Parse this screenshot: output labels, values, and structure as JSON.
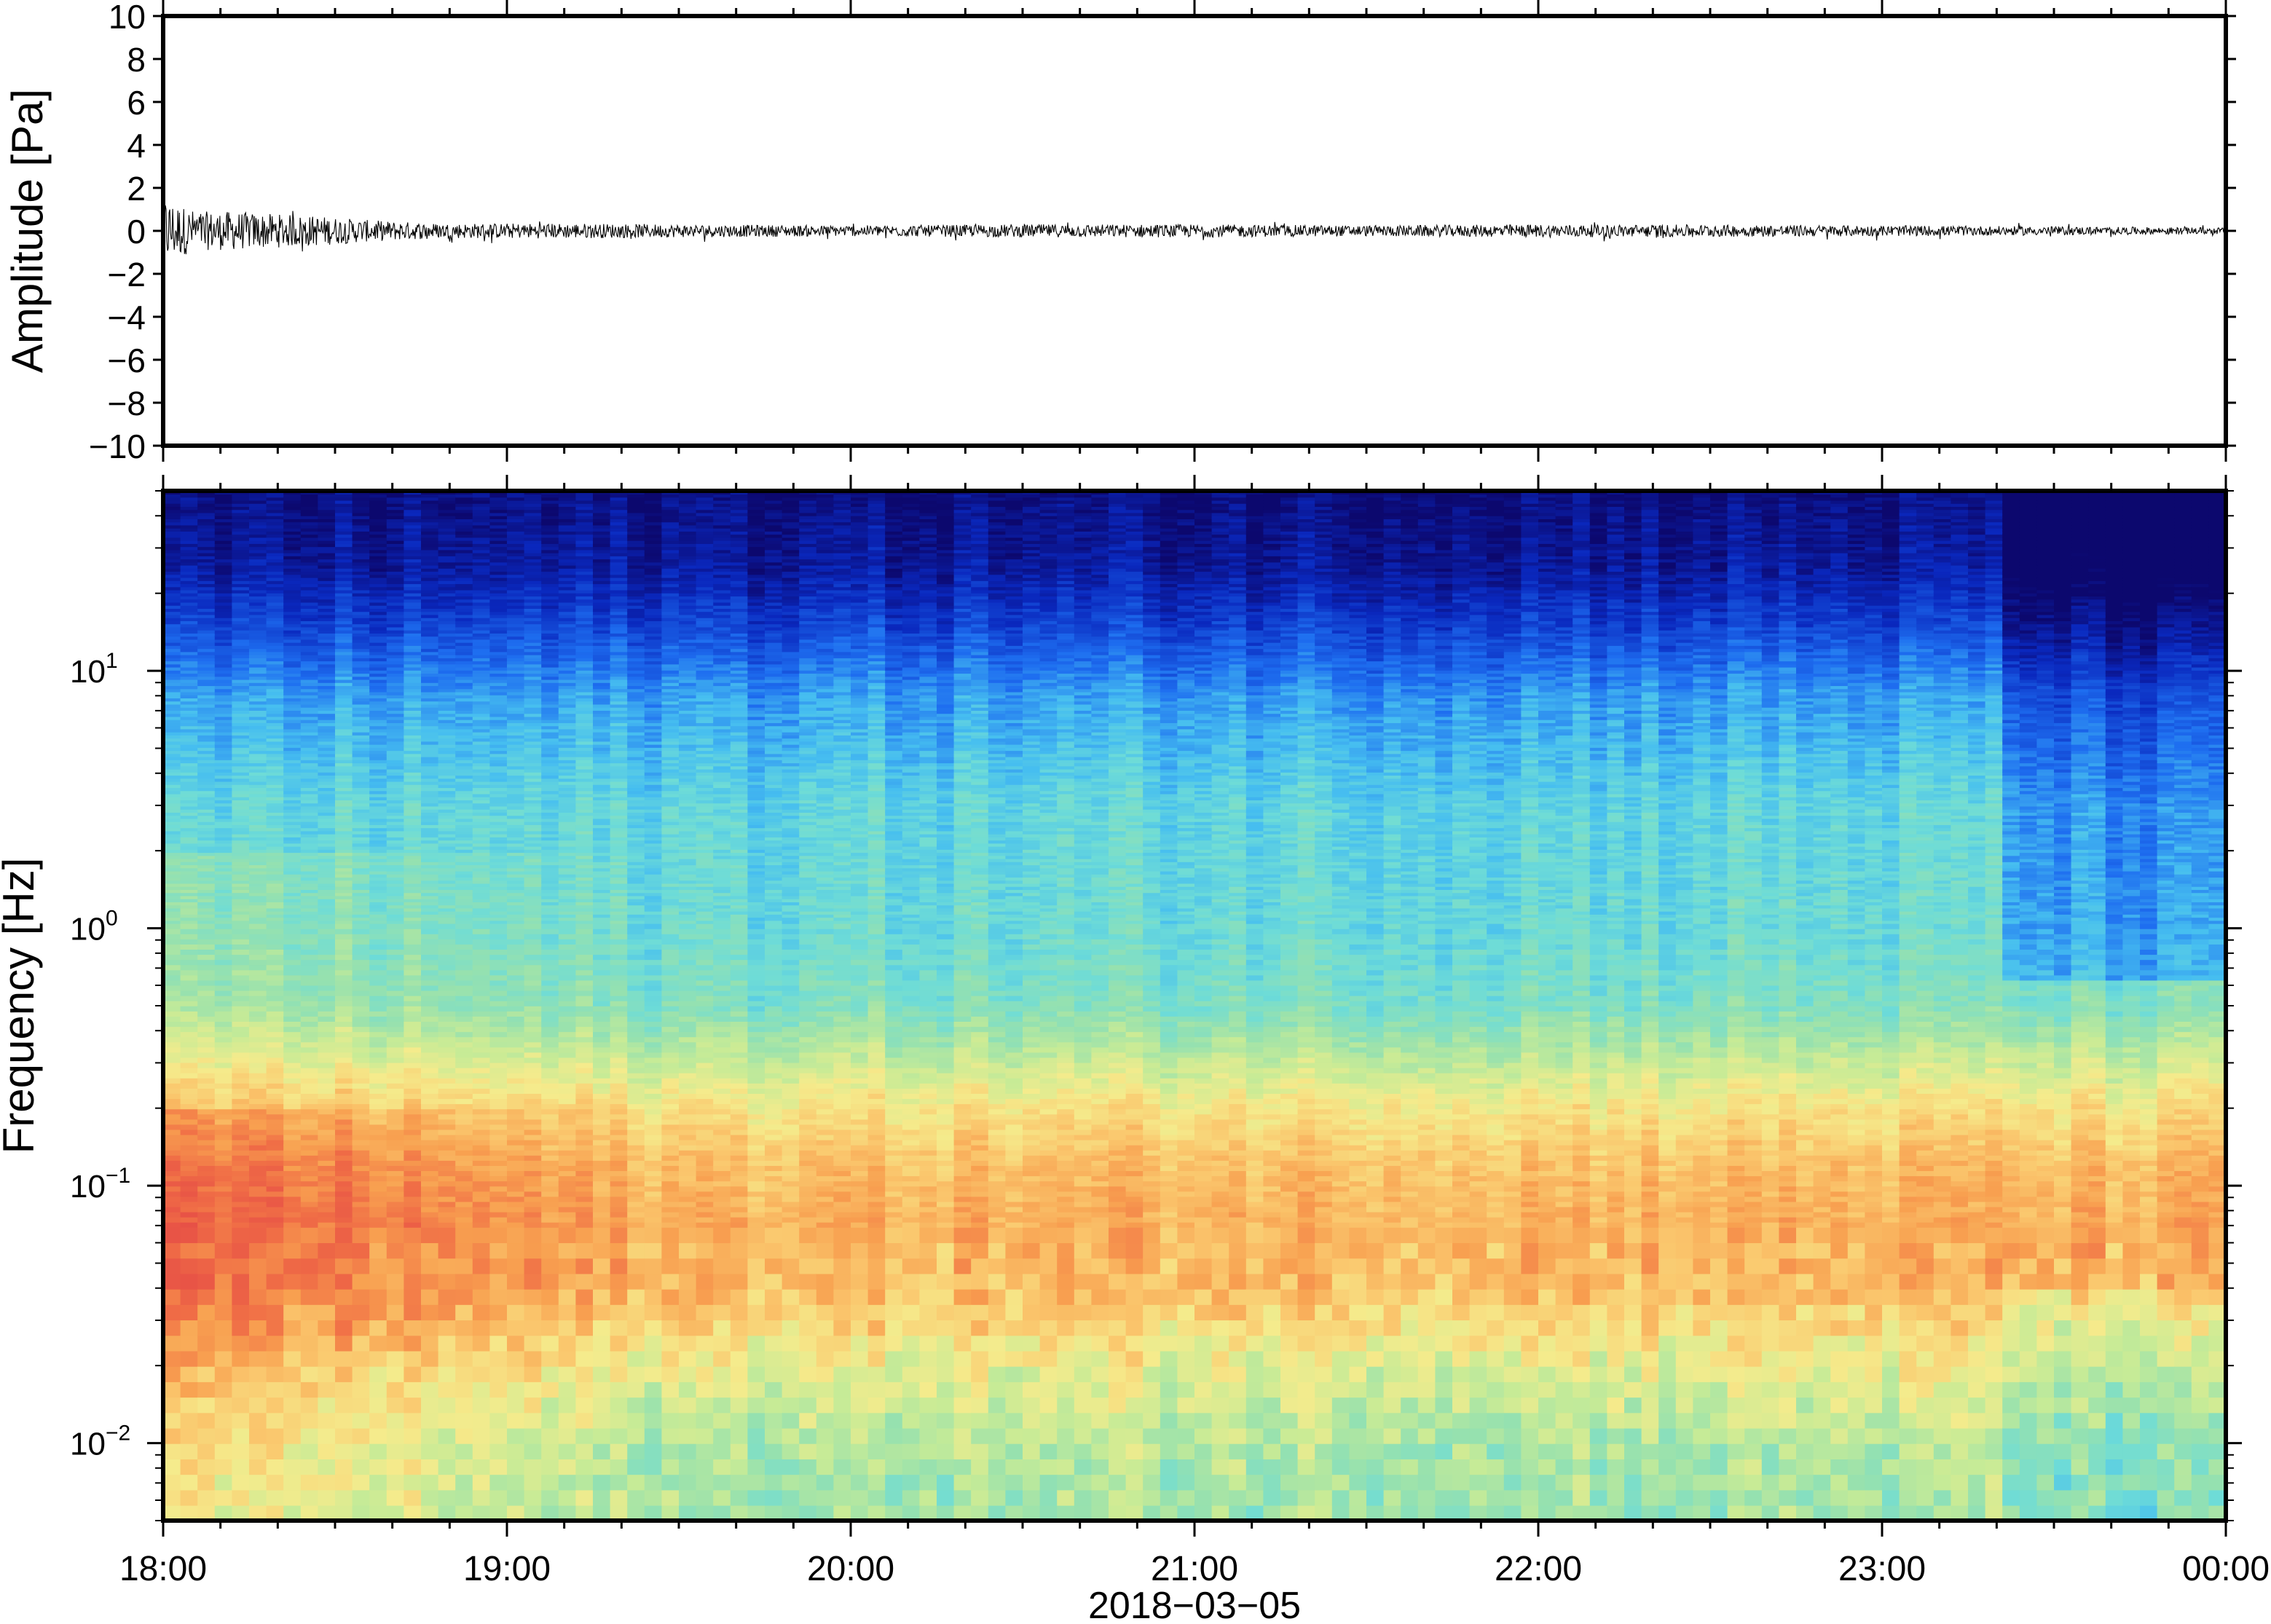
{
  "chart_data": [
    {
      "type": "line",
      "panel": "waveform",
      "ylabel": "Amplitude [Pa]",
      "ylim": [
        -10,
        10
      ],
      "yticks": [
        -10,
        -8,
        -6,
        -4,
        -2,
        0,
        2,
        4,
        6,
        8,
        10
      ],
      "ytick_labels": [
        "−10",
        "−8",
        "−6",
        "−4",
        "−2",
        "0",
        "2",
        "4",
        "6",
        "8",
        "10"
      ],
      "x_range_hours": [
        18,
        24
      ],
      "envelope": {
        "x_hours": [
          18.0,
          18.05,
          18.1,
          18.2,
          18.3,
          18.45,
          18.6,
          18.8,
          19.0,
          19.2,
          19.5,
          20.0,
          20.5,
          21.0,
          21.5,
          22.0,
          22.5,
          23.0,
          23.5,
          24.0
        ],
        "amplitude_pa": [
          1.6,
          1.2,
          0.9,
          0.9,
          0.8,
          0.7,
          0.5,
          0.35,
          0.35,
          0.35,
          0.3,
          0.25,
          0.3,
          0.3,
          0.25,
          0.3,
          0.28,
          0.25,
          0.2,
          0.15
        ]
      },
      "color": "#000000"
    },
    {
      "type": "heatmap",
      "panel": "spectrogram",
      "ylabel": "Frequency [Hz]",
      "xlabel": "2018−03−05",
      "yscale": "log",
      "ylim_hz": [
        0.005,
        50
      ],
      "yticks": [
        {
          "base": "10",
          "exp": "−2",
          "value": 0.01
        },
        {
          "base": "10",
          "exp": "−1",
          "value": 0.1
        },
        {
          "base": "10",
          "exp": "0",
          "value": 1
        },
        {
          "base": "10",
          "exp": "1",
          "value": 10
        }
      ],
      "xticks": [
        "18:00",
        "19:00",
        "20:00",
        "21:00",
        "22:00",
        "23:00",
        "00:00"
      ],
      "x_range_hours": [
        18,
        24
      ],
      "colormap": "jet-like (dark blue = low power, red = high power)",
      "power_profile_by_frequency": {
        "freq_hz": [
          0.005,
          0.01,
          0.02,
          0.04,
          0.07,
          0.12,
          0.2,
          0.5,
          1,
          3,
          8,
          15,
          25,
          50
        ],
        "relative_power": [
          0.5,
          0.53,
          0.62,
          0.74,
          0.77,
          0.74,
          0.66,
          0.44,
          0.4,
          0.38,
          0.28,
          0.15,
          0.06,
          0.02
        ]
      },
      "early_time_enhancement": {
        "x_hours": [
          18.0,
          18.5,
          19.0,
          19.5
        ],
        "extra_power": [
          0.14,
          0.1,
          0.05,
          0.0
        ]
      },
      "late_time_reduction": {
        "x_hours": [
          23.35,
          24.0
        ],
        "reduction": [
          0.1,
          0.14
        ]
      }
    }
  ]
}
